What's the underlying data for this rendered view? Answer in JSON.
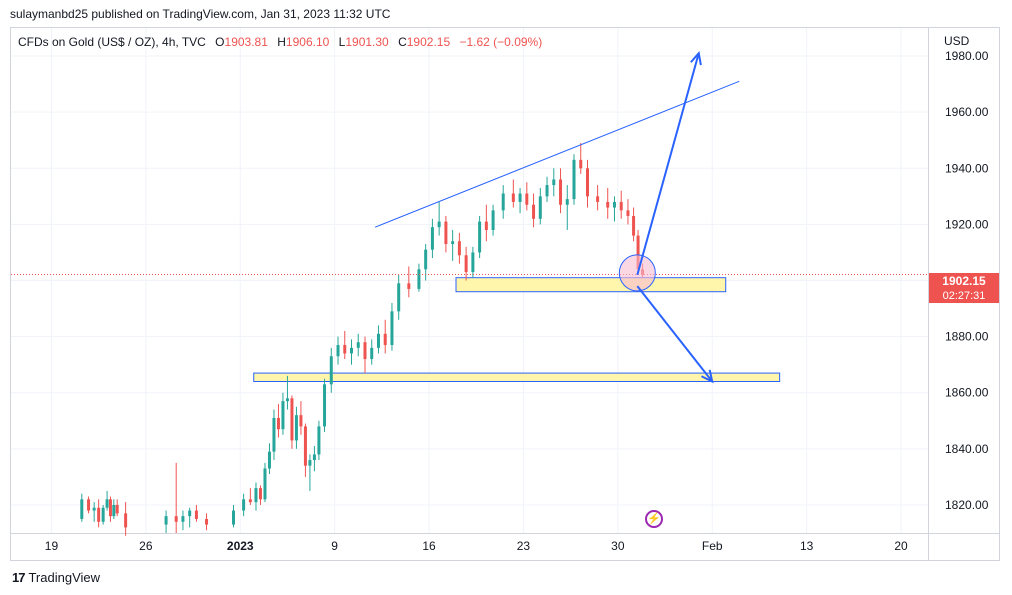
{
  "publisher_line": "sulaymanbd25 published on TradingView.com, Jan 31, 2023 11:32 UTC",
  "legend": {
    "symbol": "CFDs on Gold (US$ / OZ), 4h, TVC",
    "open_label": "O",
    "open": "1903.81",
    "high_label": "H",
    "high": "1906.10",
    "low_label": "L",
    "low": "1901.30",
    "close_label": "C",
    "close": "1902.15",
    "change": "−1.62 (−0.09%)"
  },
  "currency": "USD",
  "last_price": {
    "price": "1902.15",
    "countdown": "02:27:31"
  },
  "brand": "TradingView",
  "colors": {
    "up": "#26a69a",
    "down": "#ef5350",
    "trend": "#2962ff",
    "zone": "#fff59d",
    "circle": "#f8bbd0"
  },
  "chart_data": {
    "type": "candlestick",
    "interval": "4h",
    "ylim": [
      1810,
      1990
    ],
    "y_ticks": [
      "1820.00",
      "1840.00",
      "1860.00",
      "1880.00",
      "1900.00",
      "1920.00",
      "1940.00",
      "1960.00",
      "1980.00"
    ],
    "x_ticks": [
      "19",
      "26",
      "2023",
      "9",
      "16",
      "23",
      "30",
      "Feb",
      "13",
      "20"
    ],
    "x_range": [
      "2022-12-16",
      "2023-02-22"
    ],
    "grid": true,
    "trend_line": {
      "from": [
        "2023-01-12",
        1919
      ],
      "to": [
        "2023-02-08",
        1971
      ]
    },
    "zones": [
      {
        "from": "2023-01-18",
        "to": "2023-02-07",
        "low": 1896,
        "high": 1901
      },
      {
        "from": "2023-01-03",
        "to": "2023-02-11",
        "low": 1864,
        "high": 1867
      }
    ],
    "projection_up": {
      "from": [
        "2023-01-31",
        1902
      ],
      "to": [
        "2023-02-05",
        1981
      ]
    },
    "projection_down": {
      "from": [
        "2023-01-31",
        1898
      ],
      "to": [
        "2023-02-06",
        1864
      ]
    },
    "highlight": {
      "date": "2023-01-31",
      "price": 1902
    },
    "ohlc": [
      [
        "2022-12-21",
        1815,
        1824,
        1814,
        1822
      ],
      [
        "2022-12-21",
        1822,
        1823,
        1817,
        1818
      ],
      [
        "2022-12-22",
        1818,
        1821,
        1814,
        1819
      ],
      [
        "2022-12-22",
        1819,
        1822,
        1812,
        1814
      ],
      [
        "2022-12-22",
        1814,
        1820,
        1813,
        1819
      ],
      [
        "2022-12-23",
        1819,
        1825,
        1818,
        1822
      ],
      [
        "2022-12-23",
        1822,
        1823,
        1814,
        1816
      ],
      [
        "2022-12-23",
        1816,
        1822,
        1815,
        1820
      ],
      [
        "2022-12-23",
        1820,
        1822,
        1816,
        1817
      ],
      [
        "2022-12-24",
        1817,
        1821,
        1809,
        1812
      ],
      [
        "2022-12-27",
        1813,
        1818,
        1810,
        1816
      ],
      [
        "2022-12-28",
        1816,
        1835,
        1810,
        1814
      ],
      [
        "2022-12-28",
        1814,
        1818,
        1811,
        1816
      ],
      [
        "2022-12-29",
        1816,
        1819,
        1812,
        1818
      ],
      [
        "2022-12-29",
        1818,
        1820,
        1814,
        1815
      ],
      [
        "2022-12-30",
        1815,
        1817,
        1811,
        1813
      ],
      [
        "2023-01-01",
        1813,
        1820,
        1812,
        1818
      ],
      [
        "2023-01-02",
        1818,
        1824,
        1816,
        1822
      ],
      [
        "2023-01-02",
        1822,
        1826,
        1820,
        1821
      ],
      [
        "2023-01-03",
        1821,
        1828,
        1818,
        1826
      ],
      [
        "2023-01-03",
        1826,
        1827,
        1820,
        1822
      ],
      [
        "2023-01-03",
        1822,
        1835,
        1821,
        1833
      ],
      [
        "2023-01-04",
        1833,
        1842,
        1831,
        1839
      ],
      [
        "2023-01-04",
        1839,
        1854,
        1836,
        1851
      ],
      [
        "2023-01-04",
        1851,
        1856,
        1844,
        1847
      ],
      [
        "2023-01-05",
        1847,
        1860,
        1845,
        1857
      ],
      [
        "2023-01-05",
        1857,
        1866,
        1854,
        1858
      ],
      [
        "2023-01-05",
        1858,
        1859,
        1840,
        1843
      ],
      [
        "2023-01-06",
        1843,
        1855,
        1840,
        1852
      ],
      [
        "2023-01-06",
        1852,
        1857,
        1845,
        1848
      ],
      [
        "2023-01-06",
        1848,
        1849,
        1830,
        1834
      ],
      [
        "2023-01-07",
        1834,
        1838,
        1825,
        1836
      ],
      [
        "2023-01-07",
        1836,
        1841,
        1832,
        1838
      ],
      [
        "2023-01-07",
        1838,
        1850,
        1836,
        1848
      ],
      [
        "2023-01-08",
        1848,
        1865,
        1846,
        1863
      ],
      [
        "2023-01-08",
        1863,
        1876,
        1860,
        1873
      ],
      [
        "2023-01-09",
        1873,
        1880,
        1870,
        1877
      ],
      [
        "2023-01-09",
        1877,
        1882,
        1872,
        1874
      ],
      [
        "2023-01-10",
        1874,
        1879,
        1870,
        1876
      ],
      [
        "2023-01-10",
        1876,
        1881,
        1873,
        1878
      ],
      [
        "2023-01-11",
        1878,
        1880,
        1867,
        1872
      ],
      [
        "2023-01-11",
        1872,
        1879,
        1870,
        1876
      ],
      [
        "2023-01-12",
        1876,
        1884,
        1874,
        1881
      ],
      [
        "2023-01-12",
        1881,
        1886,
        1874,
        1877
      ],
      [
        "2023-01-13",
        1877,
        1892,
        1875,
        1889
      ],
      [
        "2023-01-13",
        1889,
        1902,
        1886,
        1899
      ],
      [
        "2023-01-14",
        1899,
        1905,
        1894,
        1897
      ],
      [
        "2023-01-15",
        1897,
        1906,
        1896,
        1904
      ],
      [
        "2023-01-15",
        1904,
        1913,
        1900,
        1911
      ],
      [
        "2023-01-16",
        1911,
        1922,
        1908,
        1919
      ],
      [
        "2023-01-16",
        1919,
        1928,
        1916,
        1921
      ],
      [
        "2023-01-17",
        1921,
        1923,
        1910,
        1913
      ],
      [
        "2023-01-17",
        1913,
        1918,
        1907,
        1914
      ],
      [
        "2023-01-18",
        1914,
        1917,
        1906,
        1909
      ],
      [
        "2023-01-18",
        1909,
        1912,
        1900,
        1903
      ],
      [
        "2023-01-19",
        1903,
        1912,
        1901,
        1910
      ],
      [
        "2023-01-19",
        1910,
        1923,
        1908,
        1921
      ],
      [
        "2023-01-20",
        1921,
        1927,
        1914,
        1918
      ],
      [
        "2023-01-20",
        1918,
        1927,
        1916,
        1925
      ],
      [
        "2023-01-21",
        1925,
        1934,
        1922,
        1931
      ],
      [
        "2023-01-22",
        1931,
        1936,
        1926,
        1928
      ],
      [
        "2023-01-22",
        1928,
        1933,
        1924,
        1931
      ],
      [
        "2023-01-23",
        1931,
        1935,
        1925,
        1927
      ],
      [
        "2023-01-23",
        1927,
        1931,
        1919,
        1922
      ],
      [
        "2023-01-24",
        1922,
        1933,
        1920,
        1930
      ],
      [
        "2023-01-24",
        1930,
        1937,
        1928,
        1934
      ],
      [
        "2023-01-25",
        1934,
        1940,
        1930,
        1936
      ],
      [
        "2023-01-25",
        1936,
        1940,
        1924,
        1927
      ],
      [
        "2023-01-26",
        1927,
        1934,
        1918,
        1929
      ],
      [
        "2023-01-26",
        1929,
        1945,
        1927,
        1943
      ],
      [
        "2023-01-27",
        1943,
        1949,
        1938,
        1940
      ],
      [
        "2023-01-27",
        1940,
        1943,
        1926,
        1930
      ],
      [
        "2023-01-28",
        1930,
        1934,
        1925,
        1928
      ],
      [
        "2023-01-29",
        1928,
        1933,
        1922,
        1926
      ],
      [
        "2023-01-29",
        1926,
        1930,
        1921,
        1928
      ],
      [
        "2023-01-30",
        1928,
        1932,
        1922,
        1925
      ],
      [
        "2023-01-30",
        1925,
        1929,
        1920,
        1923
      ],
      [
        "2023-01-31",
        1923,
        1926,
        1914,
        1916
      ],
      [
        "2023-01-31",
        1916,
        1918,
        1903,
        1904
      ],
      [
        "2023-01-31",
        1904,
        1906,
        1901,
        1902
      ]
    ]
  }
}
